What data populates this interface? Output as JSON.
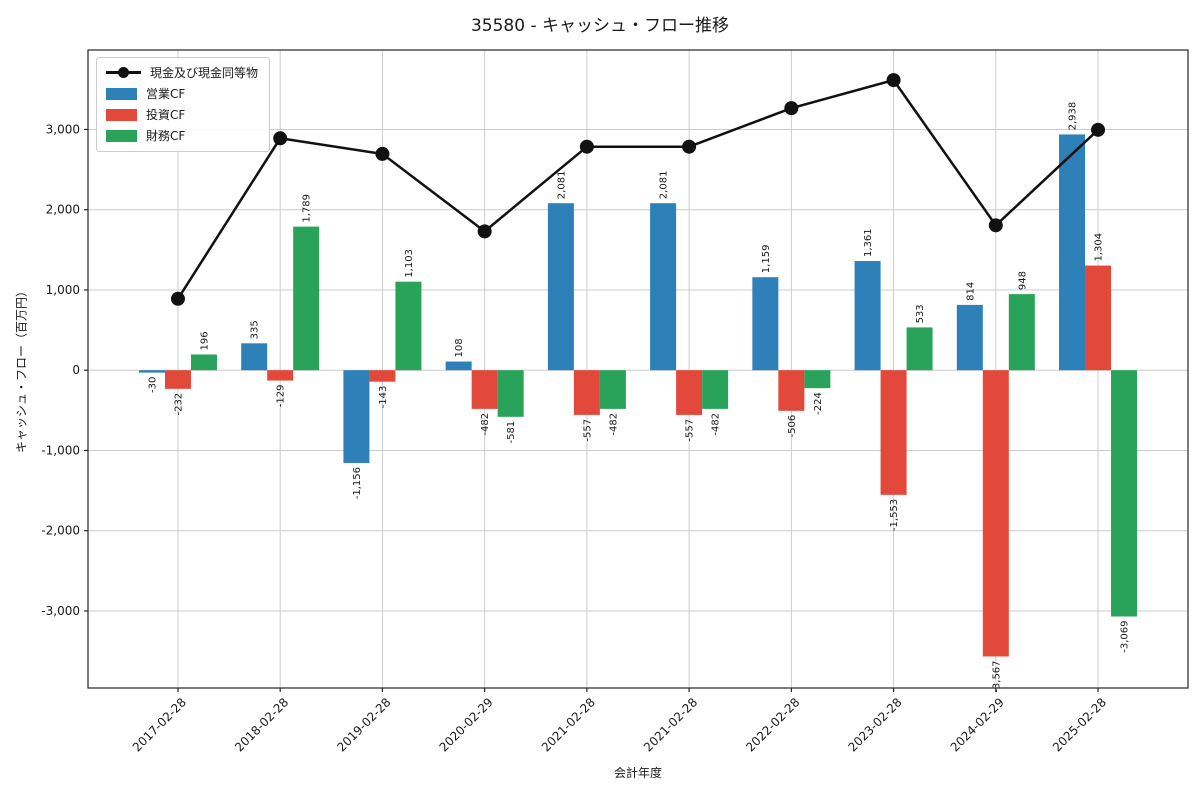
{
  "title": "35580 - キャッシュ・フロー推移",
  "chart_data": {
    "type": "bar",
    "title": "35580 - キャッシュ・フロー推移",
    "xlabel": "会計年度",
    "ylabel": "キャッシュ・フロー（百万円）",
    "categories": [
      "2017-02-28",
      "2018-02-28",
      "2019-02-28",
      "2020-02-29",
      "2021-02-28",
      "2021-02-28",
      "2022-02-28",
      "2023-02-28",
      "2024-02-29",
      "2025-02-28"
    ],
    "series": [
      {
        "name": "現金及び現金同等物",
        "kind": "line",
        "color": "#111111",
        "values": [
          890,
          2890,
          2695,
          1730,
          2785,
          2785,
          3265,
          3615,
          1805,
          2995
        ]
      },
      {
        "name": "営業CF",
        "kind": "bar",
        "color": "#2e80b9",
        "values": [
          -30,
          335,
          -1156,
          108,
          2081,
          2081,
          1159,
          1361,
          814,
          2938
        ]
      },
      {
        "name": "投資CF",
        "kind": "bar",
        "color": "#e3493b",
        "values": [
          -232,
          -129,
          -143,
          -482,
          -557,
          -557,
          -506,
          -1553,
          -3567,
          1304
        ]
      },
      {
        "name": "財務CF",
        "kind": "bar",
        "color": "#29a35a",
        "values": [
          196,
          1789,
          1103,
          -581,
          -482,
          -482,
          -224,
          533,
          948,
          -3069
        ]
      }
    ],
    "yticks": [
      -3000,
      -2000,
      -1000,
      0,
      1000,
      2000,
      3000
    ],
    "ylim": [
      -3960,
      3990
    ],
    "grid": true,
    "bar_value_labels": true,
    "legend_position": "upper-left",
    "grid_color": "#cccccc",
    "frame_color": "#262626"
  }
}
